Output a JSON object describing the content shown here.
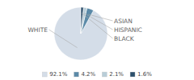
{
  "chart_data": {
    "type": "pie",
    "categories": [
      "WHITE",
      "ASIAN",
      "HISPANIC",
      "BLACK"
    ],
    "values": [
      92.1,
      4.2,
      2.1,
      1.6
    ],
    "value_labels": [
      "92.1%",
      "4.2%",
      "2.1%",
      "1.6%"
    ],
    "colors": [
      "#d4dde8",
      "#5b8aa8",
      "#b8cdd8",
      "#2d4f6b"
    ],
    "legend": "bottom"
  }
}
